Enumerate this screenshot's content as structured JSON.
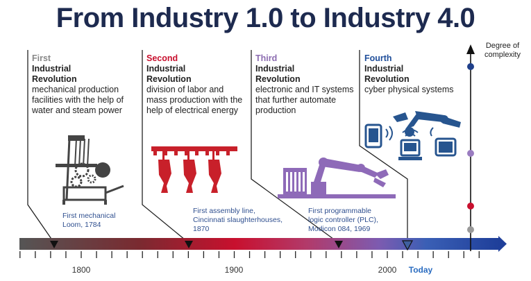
{
  "title": "From Industry 1.0 to Industry 4.0",
  "y_axis_label": "Degree of complexity",
  "today_label": "Today",
  "colors": {
    "title": "#1d2a4f",
    "first": "#888888",
    "second": "#c8102e",
    "third": "#8b6bb0",
    "fourth": "#1f4e9a",
    "icon_dark": "#444444",
    "icon_red": "#c8202a",
    "icon_purple": "#8e6ab8",
    "icon_blue": "#27558f"
  },
  "eras": [
    {
      "ordinal": "First",
      "name_line1": "Industrial",
      "name_line2": "Revolution",
      "desc": "mechanical production facilities with the help of water and steam power",
      "icon": "loom-machine-icon"
    },
    {
      "ordinal": "Second",
      "name_line1": "Industrial",
      "name_line2": "Revolution",
      "desc": "division of labor and mass production with the help of electrical energy",
      "icon": "assembly-line-icon"
    },
    {
      "ordinal": "Third",
      "name_line1": "Industrial",
      "name_line2": "Revolution",
      "desc": "electronic and IT systems that further automate production",
      "icon": "robot-arm-icon"
    },
    {
      "ordinal": "Fourth",
      "name_line1": "Industrial",
      "name_line2": "Revolution",
      "desc": "cyber physical systems",
      "icon": "connected-devices-icon"
    }
  ],
  "milestones": [
    {
      "line1": "First mechanical",
      "line2": "Loom, 1784",
      "line3": "",
      "year": 1784
    },
    {
      "line1": "First assembly line,",
      "line2": "Cincinnati slaughterhouses,",
      "line3": "1870",
      "year": 1870
    },
    {
      "line1": "First programmable",
      "line2": "logic controller (PLC),",
      "line3": "Modicon 084, 1969",
      "year": 1969
    }
  ],
  "timeline": {
    "year_labels": [
      "1800",
      "1900",
      "2000"
    ]
  }
}
